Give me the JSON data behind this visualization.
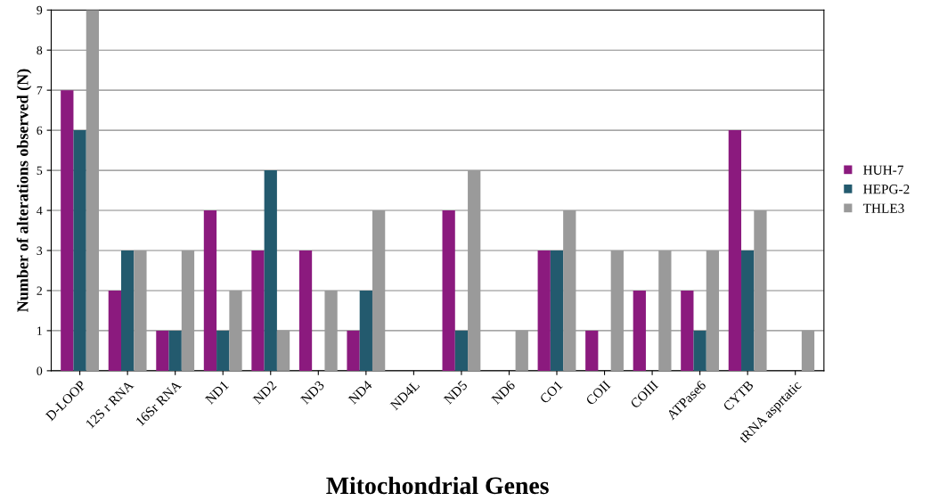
{
  "chart_data": {
    "type": "bar",
    "xlabel": "Mitochondrial Genes",
    "ylabel": "Number of alterations observed (N)",
    "categories": [
      "D-LOOP",
      "12S r RNA",
      "16Sr RNA",
      "ND1",
      "ND2",
      "ND3",
      "ND4",
      "ND4L",
      "ND5",
      "ND6",
      "CO1",
      "COII",
      "COIII",
      "ATPase6",
      "CYTB",
      "tRNA asprtatic"
    ],
    "series": [
      {
        "name": "HUH-7",
        "color": "#8b1a7e",
        "values": [
          7,
          2,
          1,
          4,
          3,
          3,
          1,
          0,
          4,
          0,
          3,
          1,
          2,
          2,
          6,
          0
        ]
      },
      {
        "name": "HEPG-2",
        "color": "#235a6e",
        "values": [
          6,
          3,
          1,
          1,
          5,
          0,
          2,
          0,
          1,
          0,
          3,
          0,
          0,
          1,
          3,
          0
        ]
      },
      {
        "name": "THLE3",
        "color": "#9a9a9a",
        "values": [
          9,
          3,
          3,
          2,
          1,
          2,
          4,
          0,
          5,
          1,
          4,
          3,
          3,
          3,
          4,
          1
        ]
      }
    ],
    "ylim": [
      0,
      9
    ],
    "yticks": [
      0,
      1,
      2,
      3,
      4,
      5,
      6,
      7,
      8,
      9
    ],
    "grid": "y",
    "legend": "right"
  }
}
